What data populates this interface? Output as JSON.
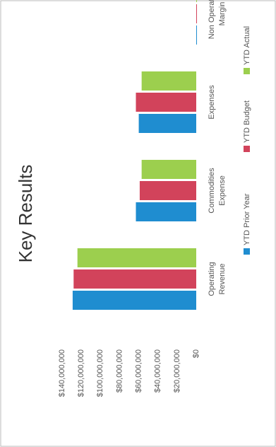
{
  "chart_data": {
    "type": "bar",
    "title": "Key Results",
    "categories": [
      "Operating Revenue",
      "Commodities Expense",
      "Expenses",
      "Non Operating Margin"
    ],
    "series": [
      {
        "name": "YTD Prior Year",
        "color": "#1f8dd0",
        "values": [
          129000000,
          63000000,
          60000000,
          0
        ]
      },
      {
        "name": "YTD Budget",
        "color": "#d2435b",
        "values": [
          128000000,
          59000000,
          63000000,
          0
        ]
      },
      {
        "name": "YTD Actual",
        "color": "#9ccf4e",
        "values": [
          124000000,
          57000000,
          57000000,
          0
        ]
      }
    ],
    "ylim": [
      0,
      140000000
    ],
    "yticks": [
      {
        "value": 0,
        "label": "$0"
      },
      {
        "value": 20000000,
        "label": "$20,000,000"
      },
      {
        "value": 40000000,
        "label": "$40,000,000"
      },
      {
        "value": 60000000,
        "label": "$60,000,000"
      },
      {
        "value": 80000000,
        "label": "$80,000,000"
      },
      {
        "value": 100000000,
        "label": "$100,000,000"
      },
      {
        "value": 120000000,
        "label": "$120,000,000"
      },
      {
        "value": 140000000,
        "label": "$140,000,000"
      }
    ],
    "legend": "bottom"
  }
}
